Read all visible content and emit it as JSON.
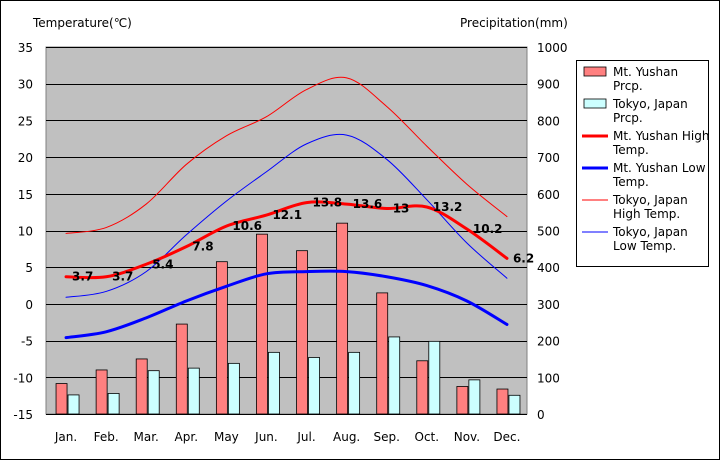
{
  "chart_data": {
    "type": "bar+line",
    "categories": [
      "Jan.",
      "Feb.",
      "Mar.",
      "Apr.",
      "May",
      "Jun.",
      "Jul.",
      "Aug.",
      "Sep.",
      "Oct.",
      "Nov.",
      "Dec."
    ],
    "left_axis": {
      "label": "Temperature(℃)",
      "ylim": [
        -15,
        35
      ],
      "ticks": [
        -15,
        -10,
        -5,
        0,
        5,
        10,
        15,
        20,
        25,
        30,
        35
      ]
    },
    "right_axis": {
      "label": "Precipitation(mm)",
      "ylim": [
        0,
        1000
      ],
      "ticks": [
        0,
        100,
        200,
        300,
        400,
        500,
        600,
        700,
        800,
        900,
        1000
      ]
    },
    "bars": [
      {
        "name": "Mt. Yushan Prcp.",
        "color": "#ff8080",
        "axis": "right",
        "values": [
          83,
          120,
          150,
          245,
          415,
          490,
          445,
          520,
          330,
          145,
          75,
          68
        ]
      },
      {
        "name": "Tokyo, Japan Prcp.",
        "color": "#ccffff",
        "axis": "right",
        "values": [
          52,
          56,
          118,
          125,
          138,
          168,
          154,
          168,
          210,
          198,
          93,
          51
        ]
      }
    ],
    "lines": [
      {
        "name": "Mt. Yushan High Temp.",
        "color": "#ff0000",
        "width": 3,
        "axis": "left",
        "values": [
          3.7,
          3.7,
          5.4,
          7.8,
          10.6,
          12.1,
          13.8,
          13.6,
          13.0,
          13.2,
          10.2,
          6.2
        ],
        "labels": [
          "3.7",
          "3.7",
          "5.4",
          "7.8",
          "10.6",
          "12.1",
          "13.8",
          "13.6",
          "13",
          "13.2",
          "10.2",
          "6.2"
        ]
      },
      {
        "name": "Mt. Yushan Low Temp.",
        "color": "#0000ff",
        "width": 3,
        "axis": "left",
        "values": [
          -4.6,
          -3.8,
          -1.9,
          0.4,
          2.4,
          4.1,
          4.4,
          4.4,
          3.7,
          2.5,
          0.4,
          -2.8
        ]
      },
      {
        "name": "Tokyo, Japan High Temp.",
        "color": "#ff0000",
        "width": 1,
        "axis": "left",
        "values": [
          9.6,
          10.4,
          13.6,
          19.0,
          22.9,
          25.5,
          29.2,
          30.8,
          26.9,
          21.5,
          16.3,
          11.9
        ]
      },
      {
        "name": "Tokyo, Japan Low Temp.",
        "color": "#0000ff",
        "width": 1,
        "axis": "left",
        "values": [
          0.9,
          1.7,
          4.4,
          9.4,
          14.0,
          18.0,
          21.8,
          23.0,
          19.7,
          14.2,
          8.3,
          3.5
        ]
      }
    ],
    "legend": {
      "placement": "right",
      "entries": [
        {
          "lines": [
            "Mt. Yushan",
            "Prcp."
          ]
        },
        {
          "lines": [
            "Tokyo, Japan",
            "Prcp."
          ]
        },
        {
          "lines": [
            "Mt. Yushan High",
            "Temp."
          ]
        },
        {
          "lines": [
            "Mt. Yushan Low",
            "Temp."
          ]
        },
        {
          "lines": [
            "Tokyo, Japan",
            "High Temp."
          ]
        },
        {
          "lines": [
            "Tokyo, Japan",
            "Low Temp."
          ]
        }
      ]
    },
    "grid": "horizontal"
  }
}
